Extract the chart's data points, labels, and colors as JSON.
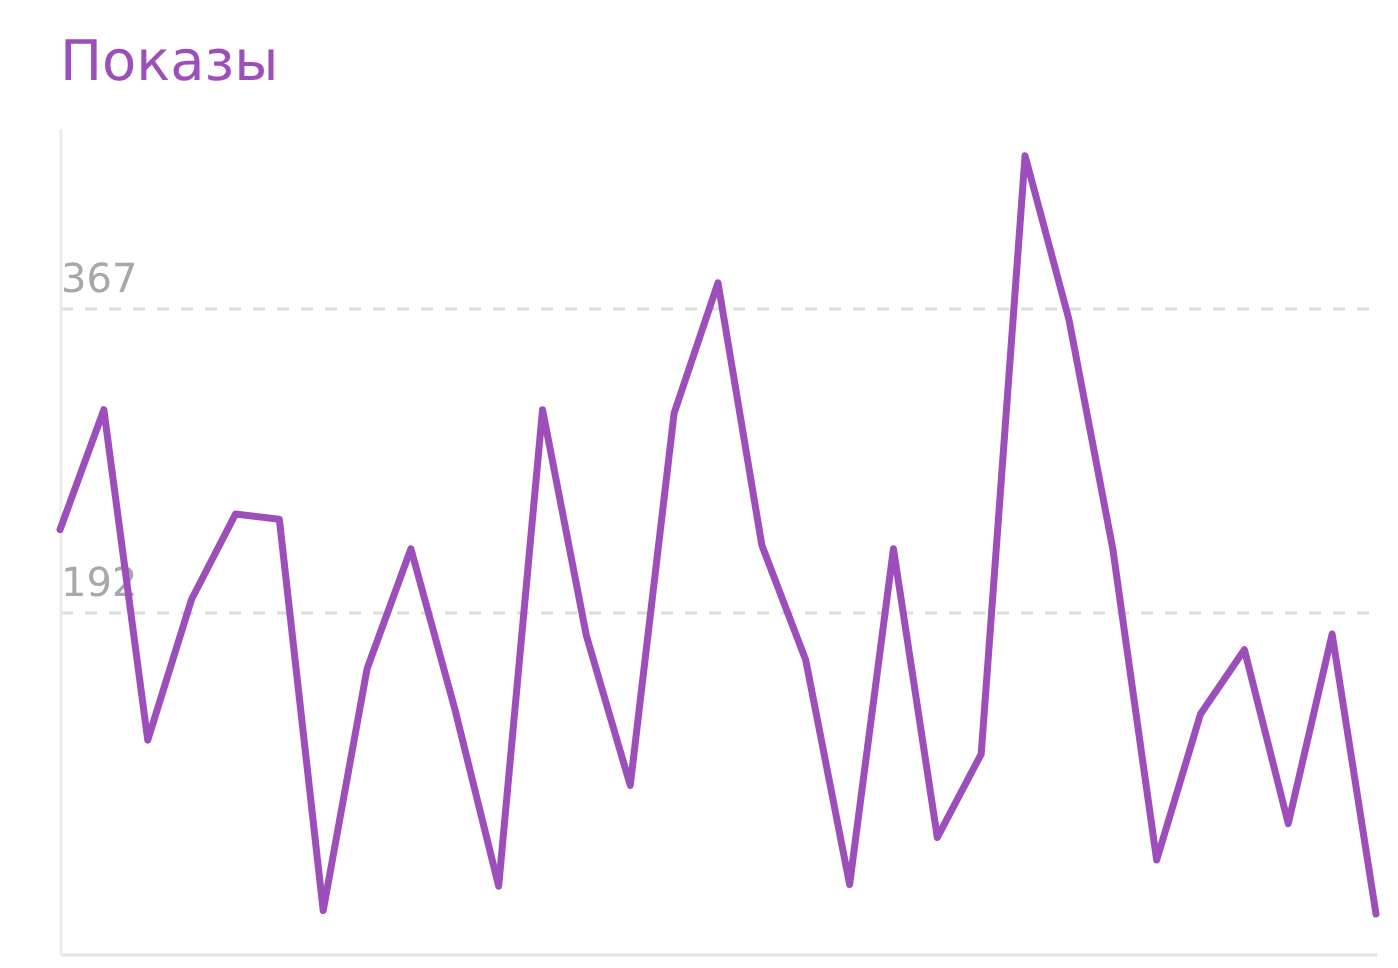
{
  "chart_data": {
    "type": "line",
    "title": "Показы",
    "categories": [
      null,
      null,
      null,
      null,
      null,
      null,
      null,
      null,
      null,
      null,
      null,
      null,
      null,
      null,
      null,
      null,
      null,
      null,
      null,
      null,
      null,
      null,
      null,
      null,
      null,
      null,
      null,
      null,
      null,
      null,
      null
    ],
    "series": [
      {
        "color": "#9c4fbb",
        "values": [
          239,
          308,
          118,
          199,
          248,
          245,
          20,
          159,
          228,
          136,
          34,
          308,
          178,
          92,
          306,
          381,
          230,
          164,
          35,
          228,
          62,
          110,
          454,
          360,
          228,
          49,
          133,
          170,
          70,
          179,
          18
        ]
      }
    ],
    "ylim": [
      -5,
      470
    ],
    "yticks": [
      192,
      367
    ],
    "grid": "y",
    "marker": "none",
    "line_style": "solid"
  }
}
